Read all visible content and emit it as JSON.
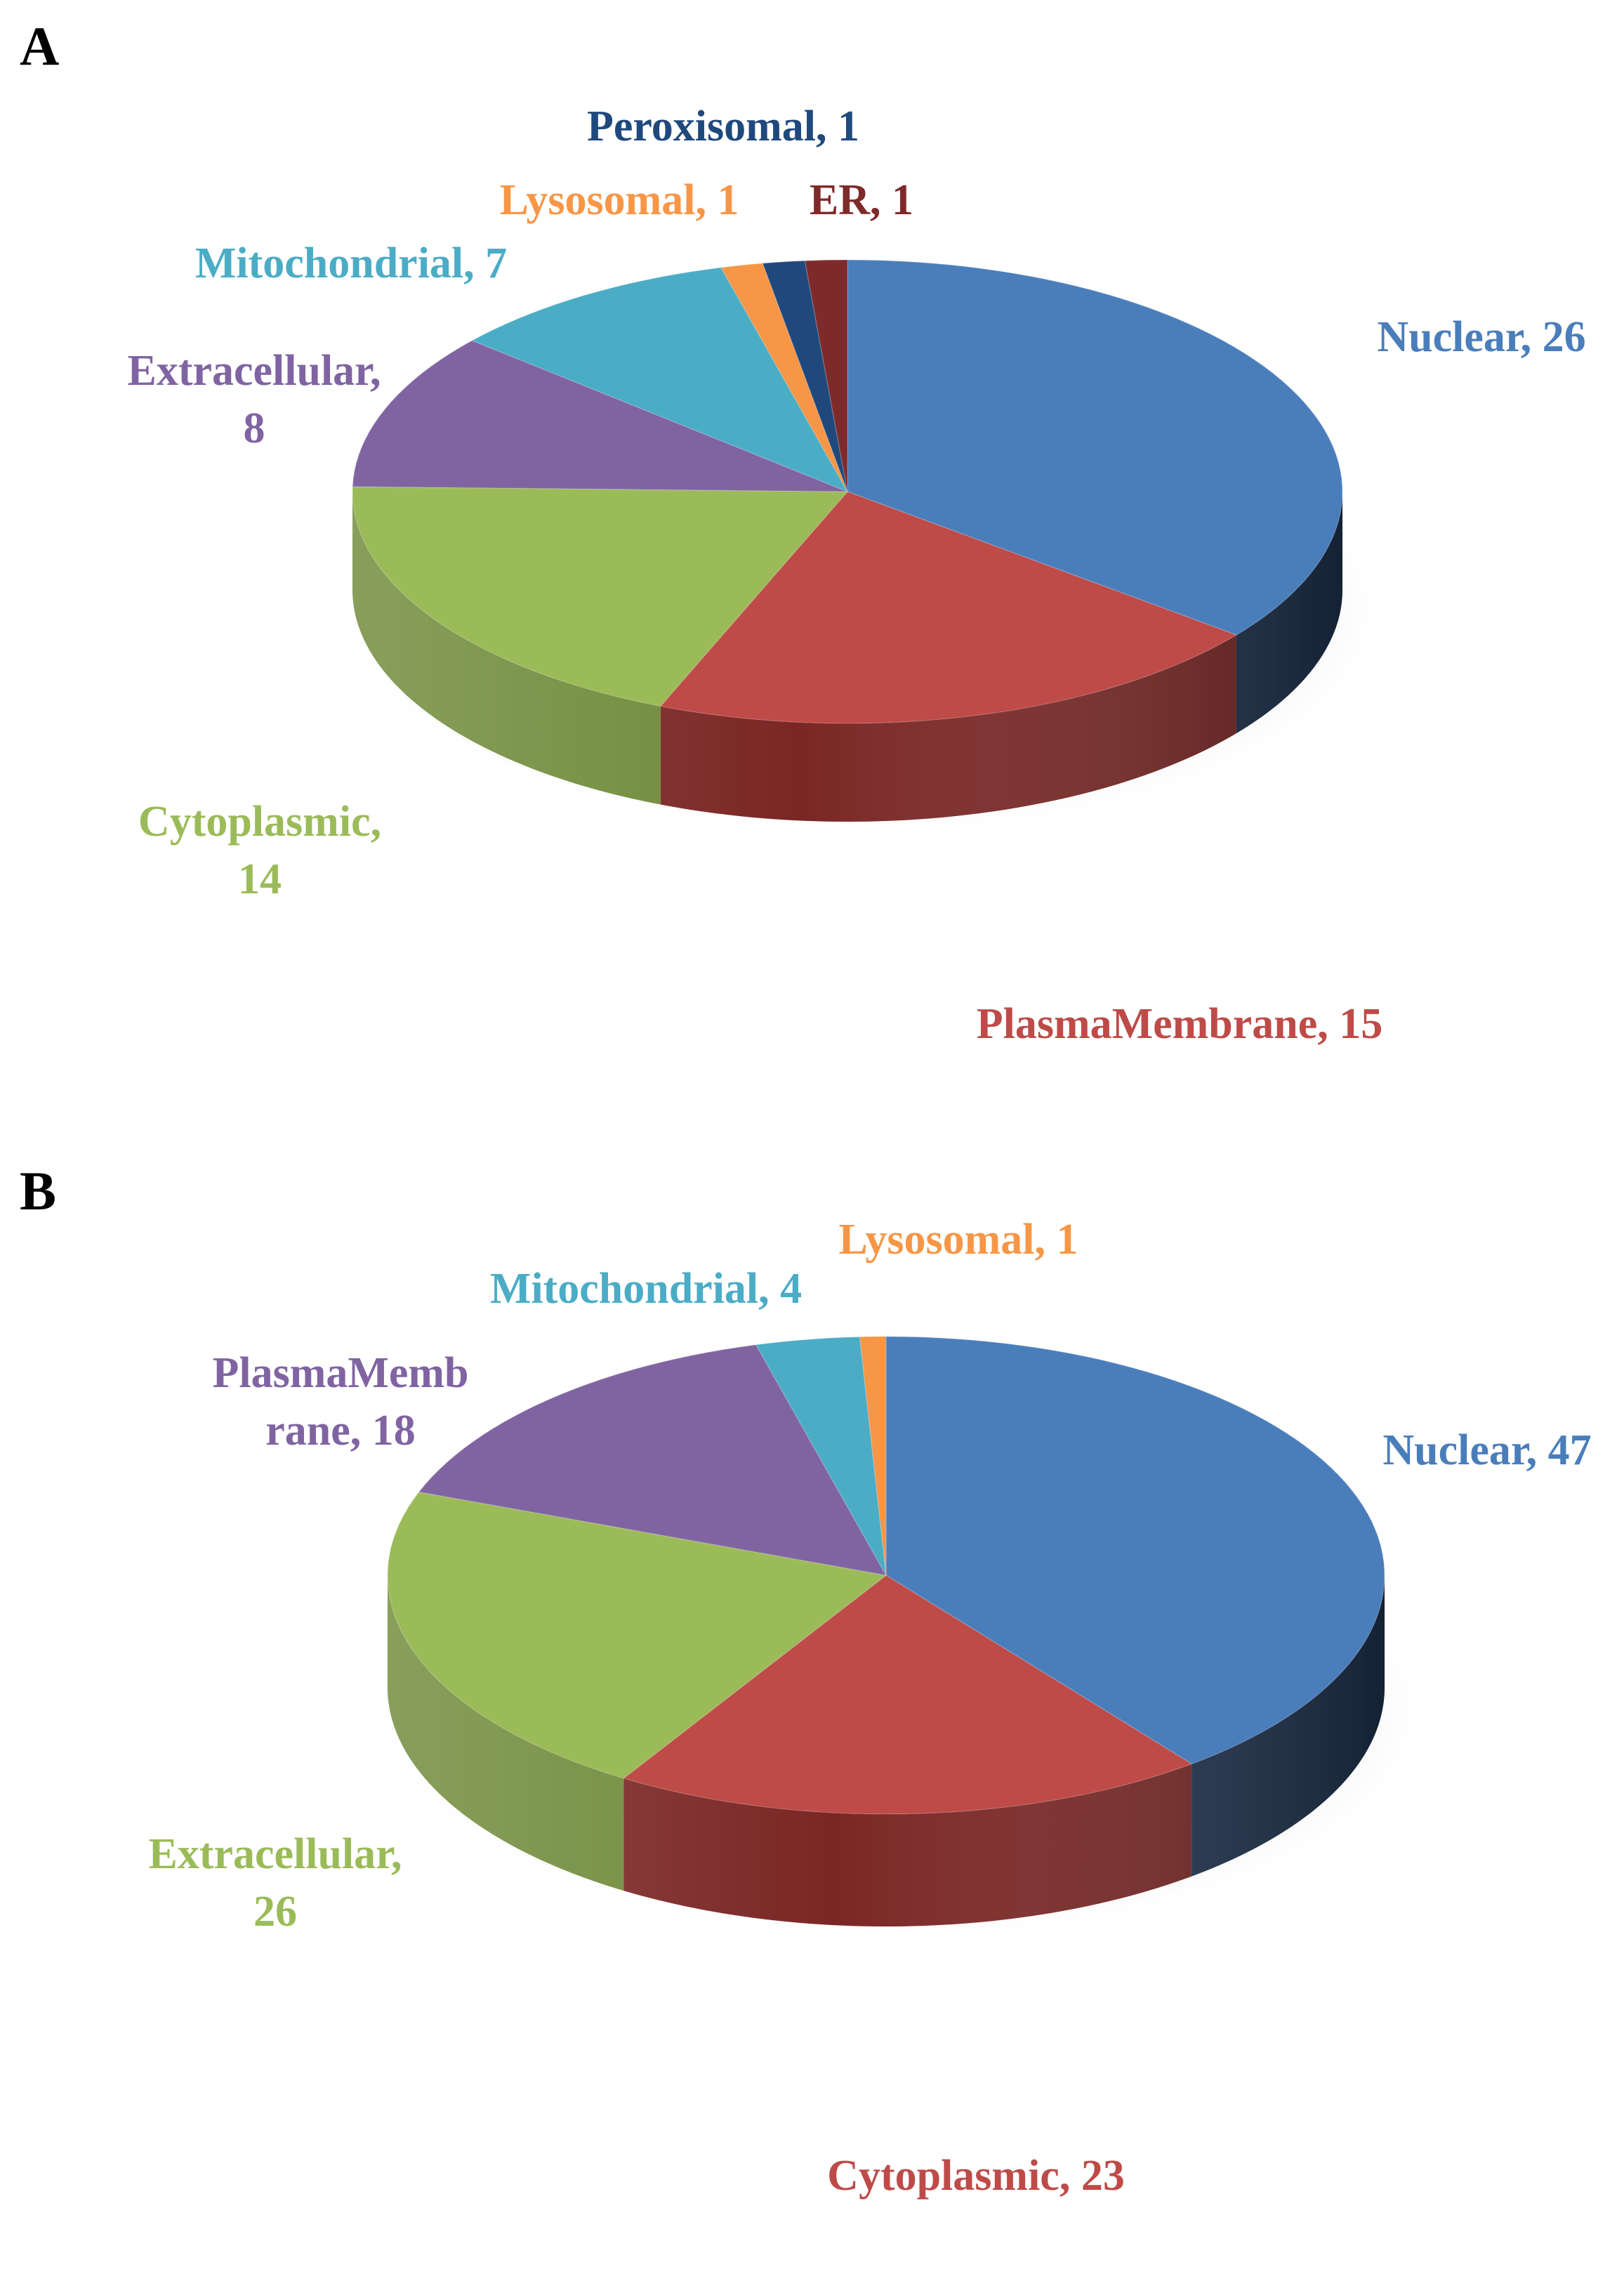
{
  "chart_data": [
    {
      "type": "pie",
      "panel": "A",
      "slices": [
        {
          "label": "Nuclear",
          "value": 26,
          "color": "#4A7EBB",
          "side_color": "#1F3350",
          "label_lines": [
            "Nuclear, 26"
          ]
        },
        {
          "label": "PlasmaMembrane",
          "value": 15,
          "color": "#BE4B48",
          "side_color": "#7A2624",
          "label_lines": [
            "PlasmaMembrane, 15"
          ]
        },
        {
          "label": "Cytoplasmic",
          "value": 14,
          "color": "#9BBB59",
          "side_color": "#6E8A38",
          "label_lines": [
            "Cytoplasmic,",
            "14"
          ]
        },
        {
          "label": "Extracellular",
          "value": 8,
          "color": "#8064A2",
          "side_color": "#4E3B66",
          "label_lines": [
            "Extracellular,",
            "8"
          ]
        },
        {
          "label": "Mitochondrial",
          "value": 7,
          "color": "#4BACC6",
          "side_color": "#2A6E80",
          "label_lines": [
            "Mitochondrial, 7"
          ]
        },
        {
          "label": "Lysosomal",
          "value": 1,
          "color": "#F79646",
          "side_color": "#B5601F",
          "label_lines": [
            "Lysosomal, 1"
          ]
        },
        {
          "label": "Peroxisomal",
          "value": 1,
          "color": "#1F497D",
          "side_color": "#12294A",
          "label_lines": [
            "Peroxisomal, 1"
          ]
        },
        {
          "label": "ER",
          "value": 1,
          "color": "#7F2A2A",
          "side_color": "#4A1515",
          "label_lines": [
            "ER, 1"
          ]
        }
      ]
    },
    {
      "type": "pie",
      "panel": "B",
      "slices": [
        {
          "label": "Nuclear",
          "value": 47,
          "color": "#4A7EBB",
          "side_color": "#1F3350",
          "label_lines": [
            "Nuclear, 47"
          ]
        },
        {
          "label": "Cytoplasmic",
          "value": 23,
          "color": "#BE4B48",
          "side_color": "#7A2624",
          "label_lines": [
            "Cytoplasmic, 23"
          ]
        },
        {
          "label": "Extracellular",
          "value": 26,
          "color": "#9BBB59",
          "side_color": "#6E8A38",
          "label_lines": [
            "Extracellular,",
            "26"
          ]
        },
        {
          "label": "PlasmaMembrane",
          "value": 18,
          "color": "#8064A2",
          "side_color": "#4E3B66",
          "label_lines": [
            "PlasmaMemb",
            "rane, 18"
          ]
        },
        {
          "label": "Mitochondrial",
          "value": 4,
          "color": "#4BACC6",
          "side_color": "#2A6E80",
          "label_lines": [
            "Mitochondrial, 4"
          ]
        },
        {
          "label": "Lysosomal",
          "value": 1,
          "color": "#F79646",
          "side_color": "#B5601F",
          "label_lines": [
            "Lysosomal, 1"
          ]
        }
      ]
    }
  ]
}
